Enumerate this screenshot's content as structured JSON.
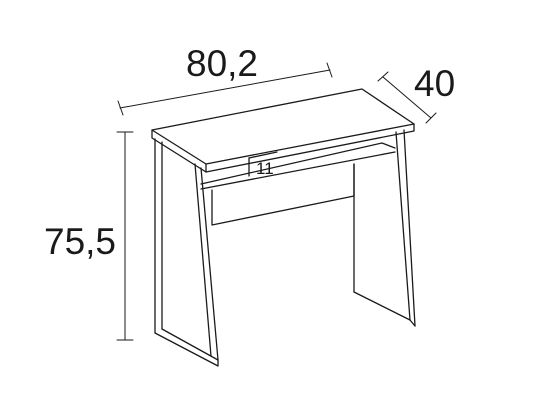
{
  "dimensions": {
    "width": "80,2",
    "depth": "40",
    "height": "75,5",
    "shelf_height": "11"
  }
}
